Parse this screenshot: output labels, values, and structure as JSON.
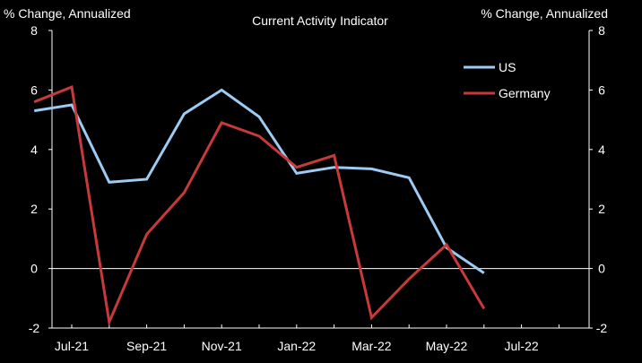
{
  "chart_data": {
    "type": "line",
    "title": "Current  Activity Indicator",
    "ylabel_left": "% Change,  Annualized",
    "ylabel_right": "% Change,  Annualized",
    "ylim": [
      -2,
      8
    ],
    "yticks": [
      "-2",
      "0",
      "2",
      "4",
      "6",
      "8"
    ],
    "xtick_labels": [
      "Jul-21",
      "Sep-21",
      "Nov-21",
      "Jan-22",
      "Mar-22",
      "May-22",
      "Jul-22"
    ],
    "x": [
      "Jun-21",
      "Jul-21",
      "Aug-21",
      "Sep-21",
      "Oct-21",
      "Nov-21",
      "Dec-21",
      "Jan-22",
      "Feb-22",
      "Mar-22",
      "Apr-22",
      "May-22",
      "Jun-22"
    ],
    "grid": false,
    "legend_position": "top-right",
    "series": [
      {
        "name": "US",
        "color": "#9ccbf3",
        "values": [
          5.3,
          5.5,
          2.9,
          3.0,
          5.2,
          6.0,
          5.1,
          3.2,
          3.4,
          3.35,
          3.05,
          0.7,
          -0.15
        ]
      },
      {
        "name": "Germany",
        "color": "#c8393a",
        "values": [
          5.6,
          6.1,
          -1.8,
          1.15,
          2.55,
          4.9,
          4.45,
          3.4,
          3.8,
          -1.65,
          -0.35,
          0.8,
          -1.35
        ]
      }
    ]
  }
}
